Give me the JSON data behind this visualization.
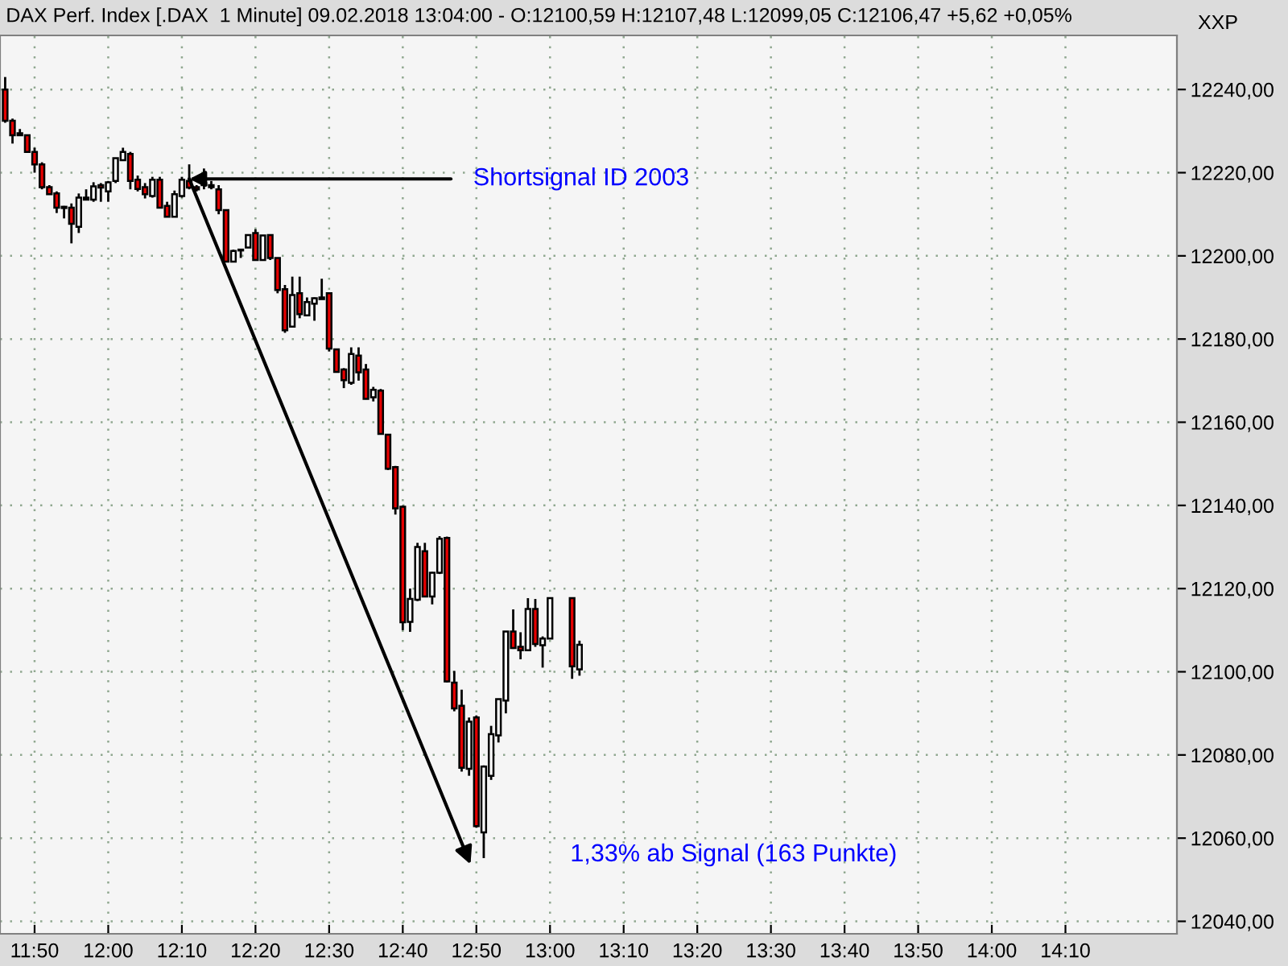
{
  "chart_data": {
    "type": "candlestick",
    "title": "DAX Perf. Index [.DAX  1 Minute] 09.02.2018 13:04:00 - O:12100,59 H:12107,48 L:12099,05 C:12106,47 +5,62 +0,05%",
    "x": [
      11.7667,
      11.7833,
      11.8,
      11.8167,
      11.8333,
      11.85,
      11.8667,
      11.8833,
      11.9,
      11.9167,
      11.9333,
      11.95,
      11.9667,
      11.9833,
      12,
      12.0167,
      12.0333,
      12.05,
      12.0667,
      12.0833,
      12.1,
      12.1167,
      12.1333,
      12.15,
      12.1667,
      12.1833,
      12.2,
      12.2167,
      12.2333,
      12.25,
      12.2667,
      12.2833,
      12.3,
      12.3167,
      12.3333,
      12.35,
      12.3667,
      12.3833,
      12.4,
      12.4167,
      12.4333,
      12.45,
      12.4667,
      12.4833,
      12.5,
      12.5167,
      12.5333,
      12.55,
      12.5667,
      12.5833,
      12.6,
      12.6167,
      12.6333,
      12.65,
      12.6667,
      12.6833,
      12.7,
      12.7167,
      12.7333,
      12.75,
      12.7667,
      12.7833,
      12.8,
      12.8167,
      12.8333,
      12.85,
      12.8667,
      12.8833,
      12.9,
      12.9167,
      12.9333,
      12.95,
      12.9667,
      12.9833,
      13,
      13.05,
      13.0667
    ],
    "ohlc": [
      [
        12240,
        12243,
        12232,
        12232.5
      ],
      [
        12232.5,
        12233,
        12227,
        12229
      ],
      [
        12229.5,
        12230.5,
        12229,
        12229
      ],
      [
        12229,
        12229,
        12225,
        12225
      ],
      [
        12225,
        12226,
        12220,
        12222
      ],
      [
        12222,
        12222.5,
        12216,
        12216.5
      ],
      [
        12216.5,
        12217,
        12214.8,
        12214.8
      ],
      [
        12215,
        12215.5,
        12210.3,
        12211.6
      ],
      [
        12211.5,
        12212,
        12209,
        12211.8
      ],
      [
        12211.6,
        12212.6,
        12203,
        12207.7
      ],
      [
        12207,
        12215,
        12205.5,
        12214
      ],
      [
        12213.5,
        12216,
        12213.5,
        12214
      ],
      [
        12213.5,
        12217.7,
        12213,
        12216.7
      ],
      [
        12217,
        12217.5,
        12213,
        12216.4
      ],
      [
        12215.5,
        12218,
        12213,
        12217.7
      ],
      [
        12218,
        12223.5,
        12217.5,
        12223.5
      ],
      [
        12223,
        12226,
        12223,
        12225
      ],
      [
        12224.5,
        12225,
        12216,
        12218
      ],
      [
        12218.3,
        12219.3,
        12215.5,
        12216.1
      ],
      [
        12216.5,
        12217.5,
        12213.8,
        12214.8
      ],
      [
        12214.4,
        12219,
        12214,
        12218.3
      ],
      [
        12218.3,
        12219,
        12211.6,
        12211.6
      ],
      [
        12212,
        12213,
        12209.4,
        12209.4
      ],
      [
        12209.4,
        12215.7,
        12209.4,
        12214.8
      ],
      [
        12214.4,
        12219,
        12214,
        12218.3
      ],
      [
        12218,
        12222,
        12216,
        12216.4
      ],
      [
        12216.5,
        12217,
        12215.5,
        12216
      ],
      [
        12217,
        12221,
        12216,
        12217.5
      ],
      [
        12217,
        12218,
        12216,
        12216.5
      ],
      [
        12216,
        12217,
        12210,
        12211
      ],
      [
        12211,
        12211,
        12198.5,
        12198.6
      ],
      [
        12198.6,
        12201.5,
        12198.5,
        12201.2
      ],
      [
        12201.5,
        12201.5,
        12199.5,
        12201.3
      ],
      [
        12202,
        12205,
        12202,
        12205
      ],
      [
        12205.5,
        12206.4,
        12199,
        12199
      ],
      [
        12199,
        12205,
        12199,
        12204.9
      ],
      [
        12205,
        12205,
        12199,
        12199.5
      ],
      [
        12199.5,
        12199.5,
        12191,
        12191.8
      ],
      [
        12192,
        12193,
        12181.5,
        12182.1
      ],
      [
        12183,
        12195,
        12183,
        12190.6
      ],
      [
        12191,
        12195,
        12185,
        12186
      ],
      [
        12185.7,
        12190,
        12185.5,
        12188.9
      ],
      [
        12188.5,
        12190,
        12184.4,
        12189.8
      ],
      [
        12190,
        12194.5,
        12189.5,
        12189.6
      ],
      [
        12191,
        12191,
        12177,
        12177.7
      ],
      [
        12177.5,
        12177.5,
        12172,
        12172.1
      ],
      [
        12172.7,
        12173,
        12168.2,
        12170.1
      ],
      [
        12169.5,
        12178,
        12169,
        12176.4
      ],
      [
        12176,
        12178,
        12170,
        12172
      ],
      [
        12172.7,
        12174,
        12165.5,
        12165.6
      ],
      [
        12166,
        12168.5,
        12165,
        12167.8
      ],
      [
        12167.6,
        12168,
        12157,
        12157.2
      ],
      [
        12157,
        12157,
        12148.5,
        12148.8
      ],
      [
        12149.2,
        12149.5,
        12137.8,
        12139.3
      ],
      [
        12139.7,
        12140,
        12110,
        12111.9
      ],
      [
        12112,
        12120,
        12109.6,
        12117.5
      ],
      [
        12117.3,
        12131,
        12117,
        12130
      ],
      [
        12129,
        12131,
        12118,
        12118.1
      ],
      [
        12118.1,
        12124,
        12116.2,
        12123.8
      ],
      [
        12123.8,
        12132.6,
        12123.5,
        12132
      ],
      [
        12132.2,
        12132.5,
        12097.5,
        12097.7
      ],
      [
        12097.4,
        12100.2,
        12090.5,
        12091.2
      ],
      [
        12091.8,
        12095.7,
        12076,
        12076.9
      ],
      [
        12076.7,
        12089,
        12075,
        12088
      ],
      [
        12089,
        12089.5,
        12062.5,
        12062.9
      ],
      [
        12061.4,
        12077.5,
        12055.2,
        12077.2
      ],
      [
        12075,
        12087,
        12074,
        12085
      ],
      [
        12084.7,
        12093.5,
        12083,
        12093.4
      ],
      [
        12093.1,
        12109.7,
        12090,
        12109.7
      ],
      [
        12109.7,
        12115,
        12105.5,
        12105.7
      ],
      [
        12106,
        12109.5,
        12103,
        12105.2
      ],
      [
        12105.2,
        12117.7,
        12105,
        12115.1
      ],
      [
        12115.1,
        12117.5,
        12106,
        12106.7
      ],
      [
        12106.4,
        12108.5,
        12101,
        12108
      ],
      [
        12108,
        12117.7,
        12108,
        12117.7
      ],
      [
        12117.7,
        12117.7,
        12098.3,
        12101.3
      ],
      [
        12100.59,
        12107.48,
        12099.05,
        12106.47
      ]
    ],
    "colors": [
      "#e60000",
      "#e60000",
      "#e60000",
      "#e60000",
      "#e60000",
      "#e60000",
      "#e60000",
      "#e60000",
      "#ffffff",
      "#e60000",
      "#ffffff",
      "#ffffff",
      "#ffffff",
      "#e60000",
      "#ffffff",
      "#ffffff",
      "#ffffff",
      "#e60000",
      "#e60000",
      "#e60000",
      "#ffffff",
      "#e60000",
      "#e60000",
      "#ffffff",
      "#ffffff",
      "#e60000",
      "#e60000",
      "#ffffff",
      "#e60000",
      "#e60000",
      "#e60000",
      "#ffffff",
      "#e60000",
      "#ffffff",
      "#e60000",
      "#ffffff",
      "#e60000",
      "#e60000",
      "#e60000",
      "#ffffff",
      "#e60000",
      "#ffffff",
      "#ffffff",
      "#e60000",
      "#e60000",
      "#e60000",
      "#e60000",
      "#ffffff",
      "#e60000",
      "#e60000",
      "#ffffff",
      "#e60000",
      "#e60000",
      "#e60000",
      "#e60000",
      "#ffffff",
      "#ffffff",
      "#e60000",
      "#ffffff",
      "#ffffff",
      "#e60000",
      "#e60000",
      "#e60000",
      "#ffffff",
      "#e60000",
      "#ffffff",
      "#ffffff",
      "#ffffff",
      "#ffffff",
      "#e60000",
      "#e60000",
      "#ffffff",
      "#e60000",
      "#ffffff",
      "#ffffff",
      "#e60000",
      "#ffffff"
    ],
    "xlim": [
      11.755,
      14.419
    ],
    "xticks": [
      {
        "value": 11.8333,
        "label": "11:50"
      },
      {
        "value": 12,
        "label": "12:00"
      },
      {
        "value": 12.1667,
        "label": "12:10"
      },
      {
        "value": 12.3333,
        "label": "12:20"
      },
      {
        "value": 12.5,
        "label": "12:30"
      },
      {
        "value": 12.6667,
        "label": "12:40"
      },
      {
        "value": 12.8333,
        "label": "12:50"
      },
      {
        "value": 13,
        "label": "13:00"
      },
      {
        "value": 13.1667,
        "label": "13:10"
      },
      {
        "value": 13.3333,
        "label": "13:20"
      },
      {
        "value": 13.5,
        "label": "13:30"
      },
      {
        "value": 13.6667,
        "label": "13:40"
      },
      {
        "value": 13.8333,
        "label": "13:50"
      },
      {
        "value": 14,
        "label": "14:00"
      },
      {
        "value": 14.1667,
        "label": "14:10"
      }
    ],
    "ylim": [
      12037,
      12253
    ],
    "yticks": [
      {
        "value": 12040,
        "label": "12040,00"
      },
      {
        "value": 12060,
        "label": "12060,00"
      },
      {
        "value": 12080,
        "label": "12080,00"
      },
      {
        "value": 12100,
        "label": "12100,00"
      },
      {
        "value": 12120,
        "label": "12120,00"
      },
      {
        "value": 12140,
        "label": "12140,00"
      },
      {
        "value": 12160,
        "label": "12160,00"
      },
      {
        "value": 12180,
        "label": "12180,00"
      },
      {
        "value": 12200,
        "label": "12200,00"
      },
      {
        "value": 12220,
        "label": "12220,00"
      },
      {
        "value": 12240,
        "label": "12240,00"
      }
    ],
    "grid": true,
    "annotations": [
      {
        "text": "Shortsignal ID 2003",
        "x": 12.1833,
        "y": 12218.5
      },
      "1,33% ab Signal (163 Punkte)",
      "XXP"
    ]
  }
}
